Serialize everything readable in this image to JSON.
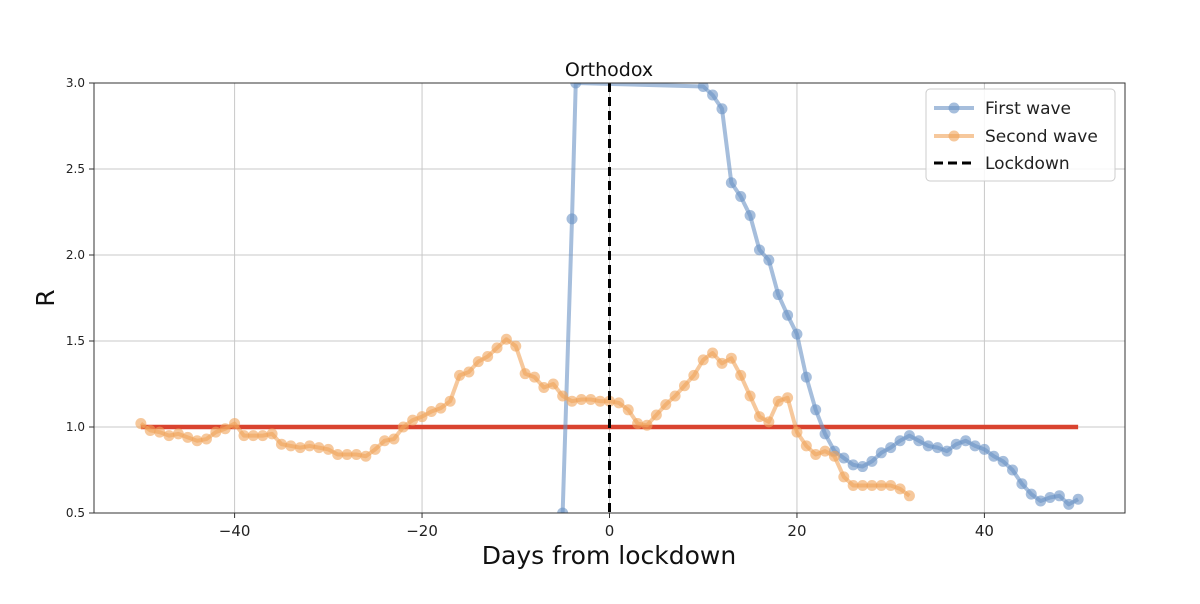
{
  "chart_data": {
    "type": "line",
    "title": "Orthodox",
    "xlabel": "Days from lockdown",
    "ylabel": "R",
    "xlim": [
      -55,
      55
    ],
    "ylim": [
      0.5,
      3.0
    ],
    "x_ticks": [
      -40,
      -20,
      0,
      20,
      40
    ],
    "x_tick_labels": [
      "−40",
      "−20",
      "0",
      "20",
      "40"
    ],
    "y_ticks": [
      0.5,
      1.0,
      1.5,
      2.0,
      2.5,
      3.0
    ],
    "y_tick_labels": [
      "0.5",
      "1.0",
      "1.5",
      "2.0",
      "2.5",
      "3.0"
    ],
    "grid": true,
    "legend_position": "top-right",
    "reference_line": {
      "y": 1.0,
      "x_range": [
        -50,
        50
      ],
      "color": "#d9432f"
    },
    "lockdown_line": {
      "x": 0,
      "label": "Lockdown",
      "color": "#000000"
    },
    "series": [
      {
        "name": "First wave",
        "color": "#6a93c4",
        "points": [
          [
            -5,
            0.5
          ],
          [
            -4,
            2.21
          ],
          [
            -3.6,
            3.0
          ],
          [
            10,
            2.98
          ],
          [
            11,
            2.93
          ],
          [
            12,
            2.85
          ],
          [
            13,
            2.42
          ],
          [
            14,
            2.34
          ],
          [
            15,
            2.23
          ],
          [
            16,
            2.03
          ],
          [
            17,
            1.97
          ],
          [
            18,
            1.77
          ],
          [
            19,
            1.65
          ],
          [
            20,
            1.54
          ],
          [
            21,
            1.29
          ],
          [
            22,
            1.1
          ],
          [
            23,
            0.96
          ],
          [
            24,
            0.86
          ],
          [
            25,
            0.82
          ],
          [
            26,
            0.78
          ],
          [
            27,
            0.77
          ],
          [
            28,
            0.8
          ],
          [
            29,
            0.85
          ],
          [
            30,
            0.88
          ],
          [
            31,
            0.92
          ],
          [
            32,
            0.95
          ],
          [
            33,
            0.92
          ],
          [
            34,
            0.89
          ],
          [
            35,
            0.88
          ],
          [
            36,
            0.86
          ],
          [
            37,
            0.9
          ],
          [
            38,
            0.92
          ],
          [
            39,
            0.89
          ],
          [
            40,
            0.87
          ],
          [
            41,
            0.83
          ],
          [
            42,
            0.8
          ],
          [
            43,
            0.75
          ],
          [
            44,
            0.67
          ],
          [
            45,
            0.61
          ],
          [
            46,
            0.57
          ],
          [
            47,
            0.59
          ],
          [
            48,
            0.6
          ],
          [
            49,
            0.55
          ],
          [
            50,
            0.58
          ]
        ]
      },
      {
        "name": "Second wave",
        "color": "#f0a35a",
        "points": [
          [
            -50,
            1.02
          ],
          [
            -49,
            0.98
          ],
          [
            -48,
            0.97
          ],
          [
            -47,
            0.95
          ],
          [
            -46,
            0.96
          ],
          [
            -45,
            0.94
          ],
          [
            -44,
            0.92
          ],
          [
            -43,
            0.93
          ],
          [
            -42,
            0.97
          ],
          [
            -41,
            0.99
          ],
          [
            -40,
            1.02
          ],
          [
            -39,
            0.95
          ],
          [
            -38,
            0.95
          ],
          [
            -37,
            0.95
          ],
          [
            -36,
            0.96
          ],
          [
            -35,
            0.9
          ],
          [
            -34,
            0.89
          ],
          [
            -33,
            0.88
          ],
          [
            -32,
            0.89
          ],
          [
            -31,
            0.88
          ],
          [
            -30,
            0.87
          ],
          [
            -29,
            0.84
          ],
          [
            -28,
            0.84
          ],
          [
            -27,
            0.84
          ],
          [
            -26,
            0.83
          ],
          [
            -25,
            0.87
          ],
          [
            -24,
            0.92
          ],
          [
            -23,
            0.93
          ],
          [
            -22,
            1.0
          ],
          [
            -21,
            1.04
          ],
          [
            -20,
            1.06
          ],
          [
            -19,
            1.09
          ],
          [
            -18,
            1.11
          ],
          [
            -17,
            1.15
          ],
          [
            -16,
            1.3
          ],
          [
            -15,
            1.32
          ],
          [
            -14,
            1.38
          ],
          [
            -13,
            1.41
          ],
          [
            -12,
            1.46
          ],
          [
            -11,
            1.51
          ],
          [
            -10,
            1.47
          ],
          [
            -9,
            1.31
          ],
          [
            -8,
            1.29
          ],
          [
            -7,
            1.23
          ],
          [
            -6,
            1.25
          ],
          [
            -5,
            1.18
          ],
          [
            -4,
            1.15
          ],
          [
            -3,
            1.16
          ],
          [
            -2,
            1.16
          ],
          [
            -1,
            1.15
          ],
          [
            0,
            1.15
          ],
          [
            1,
            1.14
          ],
          [
            2,
            1.1
          ],
          [
            3,
            1.02
          ],
          [
            4,
            1.01
          ],
          [
            5,
            1.07
          ],
          [
            6,
            1.13
          ],
          [
            7,
            1.18
          ],
          [
            8,
            1.24
          ],
          [
            9,
            1.3
          ],
          [
            10,
            1.39
          ],
          [
            11,
            1.43
          ],
          [
            12,
            1.37
          ],
          [
            13,
            1.4
          ],
          [
            14,
            1.3
          ],
          [
            15,
            1.18
          ],
          [
            16,
            1.06
          ],
          [
            17,
            1.03
          ],
          [
            18,
            1.15
          ],
          [
            19,
            1.17
          ],
          [
            20,
            0.97
          ],
          [
            21,
            0.89
          ],
          [
            22,
            0.84
          ],
          [
            23,
            0.86
          ],
          [
            24,
            0.83
          ],
          [
            25,
            0.71
          ],
          [
            26,
            0.66
          ],
          [
            27,
            0.66
          ],
          [
            28,
            0.66
          ],
          [
            29,
            0.66
          ],
          [
            30,
            0.66
          ],
          [
            31,
            0.64
          ],
          [
            32,
            0.6
          ]
        ]
      }
    ]
  }
}
